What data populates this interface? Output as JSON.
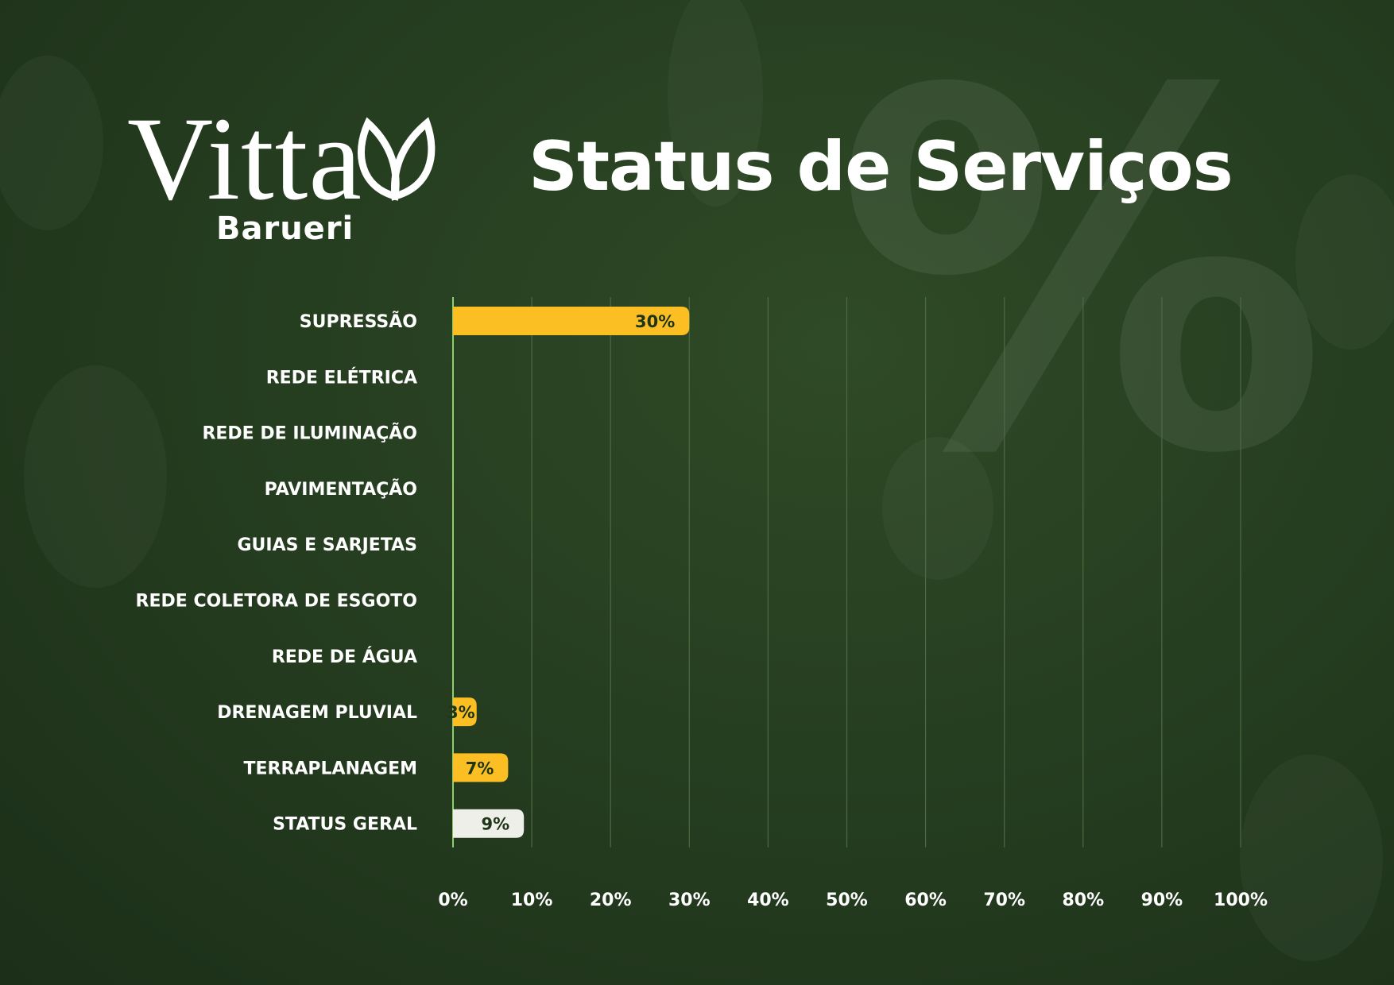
{
  "logo": {
    "brand": "Vitta",
    "subtitle": "Barueri",
    "icon": "leaf-icon"
  },
  "header": {
    "title": "Status de Serviços"
  },
  "colors": {
    "background": "#263e20",
    "bar": "#fbbf24",
    "bar_total": "#efefe9",
    "value_text": "#1e3519",
    "axis_line": "#8fcf6a",
    "gridline": "#4e6a42",
    "text": "#ffffff"
  },
  "chart_data": {
    "type": "bar",
    "orientation": "horizontal",
    "title": "Status de Serviços",
    "xlabel": "",
    "ylabel": "",
    "xlim": [
      0,
      100
    ],
    "grid": true,
    "categories": [
      "SUPRESSÃO",
      "REDE ELÉTRICA",
      "REDE DE ILUMINAÇÃO",
      "PAVIMENTAÇÃO",
      "GUIAS E SARJETAS",
      "REDE COLETORA DE ESGOTO",
      "REDE DE ÁGUA",
      "DRENAGEM PLUVIAL",
      "TERRAPLANAGEM",
      "STATUS GERAL"
    ],
    "values": [
      30,
      0,
      0,
      0,
      0,
      0,
      0,
      3,
      7,
      9
    ],
    "value_labels": [
      "30%",
      "",
      "",
      "",
      "",
      "",
      "",
      "3%",
      "7%",
      "9%"
    ],
    "x_ticks": [
      "0%",
      "10%",
      "20%",
      "30%",
      "40%",
      "50%",
      "60%",
      "70%",
      "80%",
      "90%",
      "100%"
    ]
  }
}
